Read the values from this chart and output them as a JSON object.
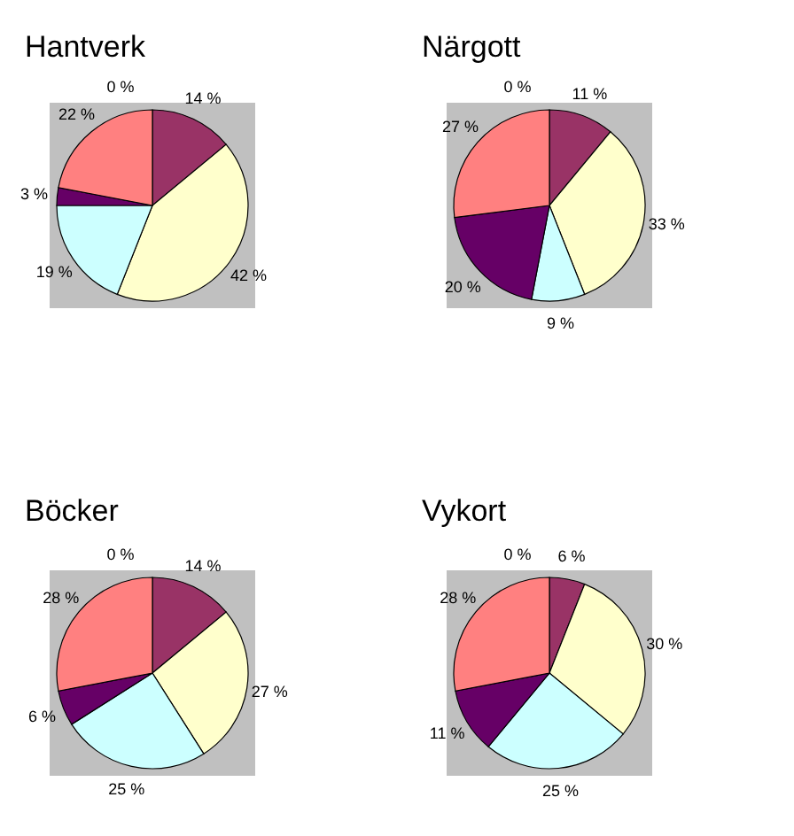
{
  "chart_data": [
    {
      "type": "pie",
      "title": "Hantverk",
      "categories": [
        null,
        null,
        null,
        null,
        null,
        null
      ],
      "values": [
        0,
        14,
        42,
        19,
        3,
        22
      ],
      "value_labels": [
        "0 %",
        "14 %",
        "42 %",
        "19 %",
        "3 %",
        "22 %"
      ],
      "colors": [
        "#9999ff",
        "#993366",
        "#ffffcc",
        "#ccffff",
        "#660066",
        "#ff8080"
      ]
    },
    {
      "type": "pie",
      "title": "Närgott",
      "categories": [
        null,
        null,
        null,
        null,
        null,
        null
      ],
      "values": [
        0,
        11,
        33,
        9,
        20,
        27
      ],
      "value_labels": [
        "0 %",
        "11 %",
        "33 %",
        "9 %",
        "20 %",
        "27 %"
      ],
      "colors": [
        "#9999ff",
        "#993366",
        "#ffffcc",
        "#ccffff",
        "#660066",
        "#ff8080"
      ]
    },
    {
      "type": "pie",
      "title": "Böcker",
      "categories": [
        null,
        null,
        null,
        null,
        null,
        null
      ],
      "values": [
        0,
        14,
        27,
        25,
        6,
        28
      ],
      "value_labels": [
        "0 %",
        "14 %",
        "27 %",
        "25 %",
        "6 %",
        "28 %"
      ],
      "colors": [
        "#9999ff",
        "#993366",
        "#ffffcc",
        "#ccffff",
        "#660066",
        "#ff8080"
      ]
    },
    {
      "type": "pie",
      "title": "Vykort",
      "categories": [
        null,
        null,
        null,
        null,
        null,
        null
      ],
      "values": [
        0,
        6,
        30,
        25,
        11,
        28
      ],
      "value_labels": [
        "0 %",
        "6 %",
        "30 %",
        "25 %",
        "11 %",
        "28 %"
      ],
      "colors": [
        "#9999ff",
        "#993366",
        "#ffffcc",
        "#ccffff",
        "#660066",
        "#ff8080"
      ]
    }
  ]
}
